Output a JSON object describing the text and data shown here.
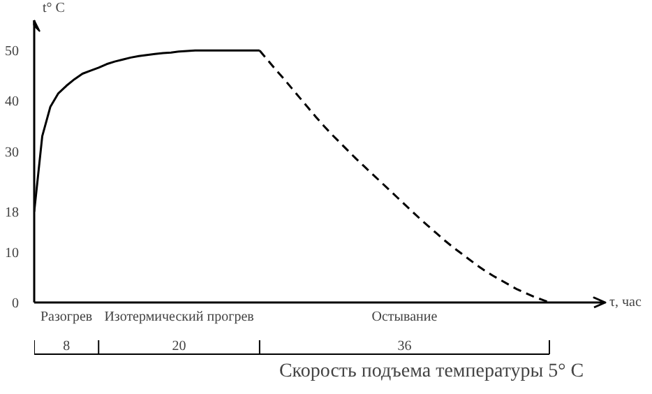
{
  "chart_data": {
    "type": "line",
    "ylabel": "t° C",
    "xlabel": "τ, час",
    "categories": [
      null,
      null,
      null,
      null,
      null,
      null,
      null,
      null,
      null,
      null,
      null,
      null,
      null,
      null,
      null,
      null,
      null,
      null,
      null,
      null,
      null,
      null,
      null,
      null,
      null,
      null,
      null,
      null,
      null,
      null,
      null,
      null,
      null,
      null,
      null,
      null,
      null,
      null,
      null,
      null,
      null,
      null,
      null,
      null,
      null,
      null,
      null,
      null,
      null,
      null,
      null,
      null,
      null,
      null,
      null,
      null,
      null,
      null,
      null,
      null,
      null,
      null,
      null,
      null,
      null
    ],
    "ylim": [
      0,
      56
    ],
    "yticks": [
      0,
      10,
      18,
      30,
      40,
      50
    ],
    "series": [
      {
        "color": "#000000",
        "line_style": "solid",
        "values": [
          18,
          33,
          38.8,
          41.5,
          43,
          44.3,
          45.4,
          46,
          46.6,
          47.3,
          47.8,
          48.2,
          48.6,
          48.9,
          49.1,
          49.3,
          49.5,
          49.6,
          49.8,
          49.9,
          50,
          50,
          50,
          50,
          50,
          50,
          50,
          50,
          50,
          null,
          null,
          null,
          null,
          null,
          null,
          null,
          null,
          null,
          null,
          null,
          null,
          null,
          null,
          null,
          null,
          null,
          null,
          null,
          null,
          null,
          null,
          null,
          null,
          null,
          null,
          null,
          null,
          null,
          null,
          null,
          null,
          null,
          null,
          null,
          null
        ]
      },
      {
        "color": "#000000",
        "line_style": "dashed",
        "values": [
          null,
          null,
          null,
          null,
          null,
          null,
          null,
          null,
          null,
          null,
          null,
          null,
          null,
          null,
          null,
          null,
          null,
          null,
          null,
          null,
          null,
          null,
          null,
          null,
          null,
          null,
          null,
          null,
          50,
          48.1,
          46.2,
          44.4,
          42.5,
          40.6,
          38.7,
          36.8,
          35,
          33.3,
          31.7,
          30.1,
          28.5,
          27,
          25.5,
          24,
          22.5,
          21,
          19.5,
          18,
          16.5,
          15.1,
          13.7,
          12.3,
          11,
          9.8,
          8.6,
          7.4,
          6.3,
          5.3,
          4.4,
          3.5,
          2.6,
          1.9,
          1.2,
          0.6,
          0
        ]
      }
    ],
    "annotations": [
      "Разогрев",
      "Изотермический прогрев",
      "Остывание",
      "8",
      "20",
      "36",
      "Скорость подъема температуры  5° C"
    ],
    "grid": false
  }
}
